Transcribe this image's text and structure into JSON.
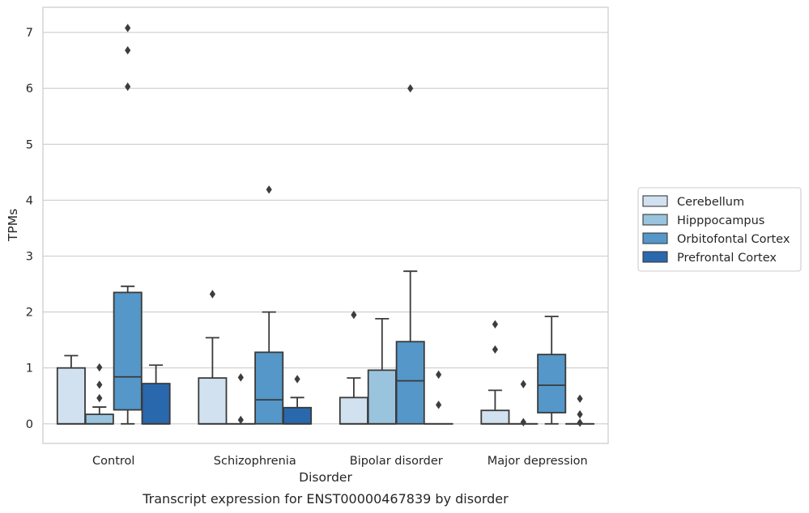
{
  "chart_data": {
    "type": "boxplot",
    "title": "Transcript expression for ENST00000467839 by disorder",
    "xlabel": "Disorder",
    "ylabel": "TPMs",
    "ylim": [
      -0.35,
      7.45
    ],
    "yticks": [
      0,
      1,
      2,
      3,
      4,
      5,
      6,
      7
    ],
    "grid": "horizontal",
    "legend_position": "right",
    "categories": [
      "Control",
      "Schizophrenia",
      "Bipolar disorder",
      "Major depression"
    ],
    "series": [
      {
        "name": "Cerebellum",
        "color": "#d1e1f0",
        "boxes": [
          {
            "q1": 0,
            "median": 0,
            "q3": 1.0,
            "whislo": 0,
            "whishi": 1.22,
            "fliers": []
          },
          {
            "q1": 0,
            "median": 0,
            "q3": 0.82,
            "whislo": 0,
            "whishi": 1.54,
            "fliers": [
              2.32
            ]
          },
          {
            "q1": 0,
            "median": 0,
            "q3": 0.47,
            "whislo": 0,
            "whishi": 0.82,
            "fliers": [
              1.95
            ]
          },
          {
            "q1": 0,
            "median": 0,
            "q3": 0.24,
            "whislo": 0,
            "whishi": 0.6,
            "fliers": [
              1.33,
              1.78
            ]
          }
        ]
      },
      {
        "name": "Hipppocampus",
        "color": "#9ac4de",
        "boxes": [
          {
            "q1": 0,
            "median": 0,
            "q3": 0.17,
            "whislo": 0,
            "whishi": 0.3,
            "fliers": [
              0.46,
              0.7,
              1.01
            ]
          },
          {
            "q1": 0,
            "median": 0,
            "q3": 0,
            "whislo": 0,
            "whishi": 0,
            "fliers": [
              0.07,
              0.83
            ]
          },
          {
            "q1": 0,
            "median": 0,
            "q3": 0.96,
            "whislo": 0,
            "whishi": 1.88,
            "fliers": []
          },
          {
            "q1": 0,
            "median": 0,
            "q3": 0,
            "whislo": 0,
            "whishi": 0,
            "fliers": [
              0.03,
              0.71
            ]
          }
        ]
      },
      {
        "name": "Orbitofontal Cortex",
        "color": "#5497c8",
        "boxes": [
          {
            "q1": 0.25,
            "median": 0.84,
            "q3": 2.35,
            "whislo": 0,
            "whishi": 2.46,
            "fliers": [
              6.03,
              6.68,
              7.08
            ]
          },
          {
            "q1": 0,
            "median": 0.43,
            "q3": 1.28,
            "whislo": 0,
            "whishi": 2.0,
            "fliers": [
              4.19
            ]
          },
          {
            "q1": 0,
            "median": 0.77,
            "q3": 1.47,
            "whislo": 0,
            "whishi": 2.73,
            "fliers": [
              6.0
            ]
          },
          {
            "q1": 0.2,
            "median": 0.69,
            "q3": 1.24,
            "whislo": 0,
            "whishi": 1.92,
            "fliers": []
          }
        ]
      },
      {
        "name": "Prefrontal Cortex",
        "color": "#2a68ad",
        "boxes": [
          {
            "q1": 0,
            "median": 0,
            "q3": 0.72,
            "whislo": 0,
            "whishi": 1.05,
            "fliers": []
          },
          {
            "q1": 0,
            "median": 0,
            "q3": 0.29,
            "whislo": 0,
            "whishi": 0.47,
            "fliers": [
              0.8
            ]
          },
          {
            "q1": 0,
            "median": 0,
            "q3": 0,
            "whislo": 0,
            "whishi": 0,
            "fliers": [
              0.34,
              0.88
            ]
          },
          {
            "q1": 0,
            "median": 0,
            "q3": 0,
            "whislo": 0,
            "whishi": 0,
            "fliers": [
              0.02,
              0.17,
              0.45
            ]
          }
        ]
      }
    ]
  }
}
